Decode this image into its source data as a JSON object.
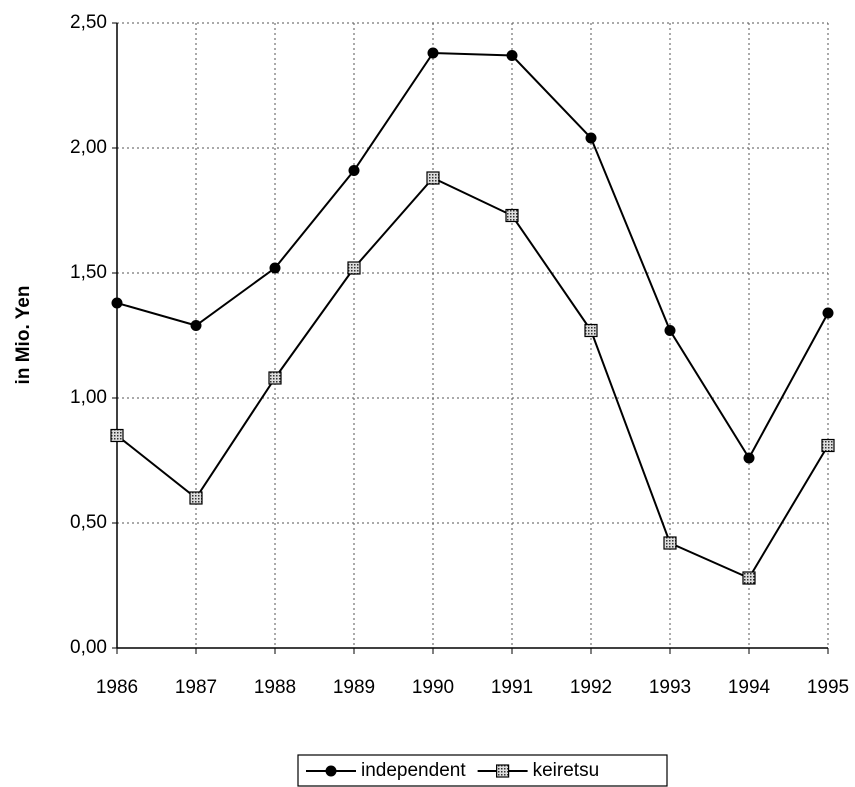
{
  "chart_data": {
    "type": "line",
    "y_label": "in Mio. Yen",
    "categories": [
      "1986",
      "1987",
      "1988",
      "1989",
      "1990",
      "1991",
      "1992",
      "1993",
      "1994",
      "1995"
    ],
    "series": [
      {
        "name": "independent",
        "color": "#000000",
        "marker": "circle",
        "values": [
          1.38,
          1.29,
          1.52,
          1.91,
          2.38,
          2.37,
          2.04,
          1.27,
          0.76,
          1.34
        ]
      },
      {
        "name": "keiretsu",
        "color": "#000000",
        "marker": "square",
        "values": [
          0.85,
          0.6,
          1.08,
          1.52,
          1.88,
          1.73,
          1.27,
          0.42,
          0.28,
          0.81
        ]
      }
    ],
    "ylim": [
      0,
      2.5
    ],
    "yticks": [
      {
        "value": 0,
        "label": "0,00"
      },
      {
        "value": 0.5,
        "label": "0,50"
      },
      {
        "value": 1,
        "label": "1,00"
      },
      {
        "value": 1.5,
        "label": "1,50"
      },
      {
        "value": 2,
        "label": "2,00"
      },
      {
        "value": 2.5,
        "label": "2,50"
      }
    ],
    "grid": true,
    "legend": "bottom"
  }
}
